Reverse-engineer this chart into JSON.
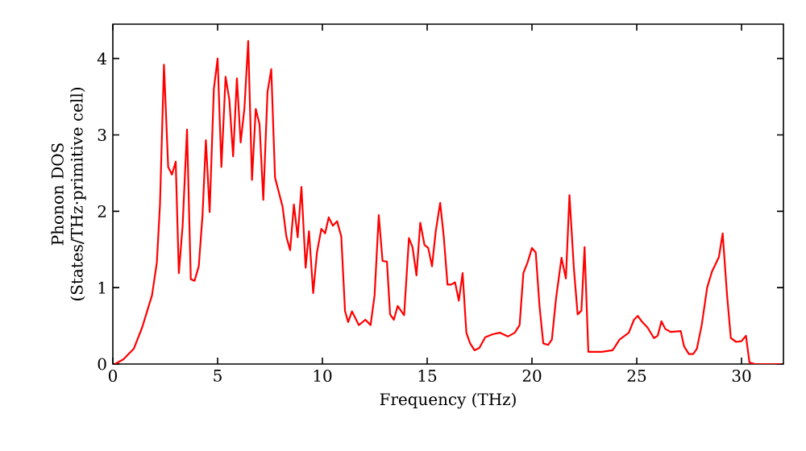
{
  "chart_data": {
    "type": "line",
    "xlabel": "Frequency (THz)",
    "ylabel": "Phonon DOS (States/THz·primitive cell)",
    "xlim": [
      0,
      32
    ],
    "ylim": [
      0,
      4.45
    ],
    "xticks": [
      0,
      5,
      10,
      15,
      20,
      25,
      30
    ],
    "yticks": [
      0,
      1,
      2,
      3,
      4
    ],
    "marker": "none",
    "line_style": "solid",
    "series": [
      {
        "color": "#ff0000",
        "x": [
          0.1,
          0.5,
          1.0,
          1.4,
          1.87,
          2.1,
          2.25,
          2.44,
          2.64,
          2.82,
          3.0,
          3.15,
          3.33,
          3.54,
          3.72,
          3.9,
          4.1,
          4.28,
          4.44,
          4.62,
          4.82,
          5.0,
          5.18,
          5.38,
          5.56,
          5.74,
          5.92,
          6.1,
          6.28,
          6.46,
          6.64,
          6.82,
          7.0,
          7.18,
          7.38,
          7.56,
          7.74,
          8.1,
          8.28,
          8.46,
          8.64,
          8.82,
          9.0,
          9.2,
          9.36,
          9.56,
          9.74,
          9.95,
          10.13,
          10.3,
          10.5,
          10.7,
          10.9,
          11.08,
          11.23,
          11.41,
          11.74,
          12.05,
          12.3,
          12.49,
          12.69,
          12.87,
          13.08,
          13.23,
          13.41,
          13.59,
          13.9,
          14.13,
          14.3,
          14.49,
          14.67,
          14.87,
          15.05,
          15.23,
          15.41,
          15.62,
          15.79,
          15.97,
          16.15,
          16.33,
          16.51,
          16.69,
          16.87,
          17.05,
          17.26,
          17.49,
          17.77,
          18.13,
          18.46,
          18.85,
          19.18,
          19.41,
          19.59,
          19.79,
          20.0,
          20.18,
          20.36,
          20.54,
          20.77,
          20.95,
          21.15,
          21.41,
          21.62,
          21.79,
          22.0,
          22.18,
          22.36,
          22.51,
          22.69,
          23.33,
          23.85,
          24.18,
          24.62,
          24.87,
          25.05,
          25.26,
          25.51,
          25.82,
          26.0,
          26.18,
          26.36,
          26.62,
          27.1,
          27.26,
          27.49,
          27.69,
          27.87,
          28.1,
          28.36,
          28.59,
          28.92,
          29.1,
          29.31,
          29.49,
          29.74,
          30.0,
          30.21,
          30.38,
          30.64,
          31.9
        ],
        "values": [
          0,
          0.06,
          0.2,
          0.48,
          0.9,
          1.33,
          2.09,
          3.92,
          2.58,
          2.48,
          2.65,
          1.19,
          1.81,
          3.07,
          1.11,
          1.09,
          1.28,
          1.95,
          2.93,
          1.99,
          3.6,
          4.0,
          2.58,
          3.76,
          3.46,
          2.72,
          3.74,
          2.9,
          3.35,
          4.23,
          2.41,
          3.34,
          3.14,
          2.15,
          3.56,
          3.86,
          2.44,
          2.06,
          1.67,
          1.49,
          2.09,
          1.66,
          2.32,
          1.26,
          1.74,
          0.93,
          1.46,
          1.77,
          1.71,
          1.92,
          1.81,
          1.87,
          1.67,
          0.69,
          0.55,
          0.69,
          0.51,
          0.58,
          0.51,
          0.9,
          1.95,
          1.35,
          1.34,
          0.65,
          0.58,
          0.76,
          0.64,
          1.65,
          1.53,
          1.16,
          1.85,
          1.56,
          1.52,
          1.28,
          1.74,
          2.11,
          1.67,
          1.04,
          1.04,
          1.07,
          0.83,
          1.19,
          0.41,
          0.27,
          0.18,
          0.21,
          0.35,
          0.39,
          0.41,
          0.36,
          0.41,
          0.51,
          1.19,
          1.33,
          1.52,
          1.46,
          0.76,
          0.27,
          0.25,
          0.32,
          0.86,
          1.39,
          1.12,
          2.21,
          1.25,
          0.65,
          0.7,
          1.53,
          0.16,
          0.16,
          0.18,
          0.32,
          0.41,
          0.58,
          0.63,
          0.55,
          0.48,
          0.34,
          0.37,
          0.56,
          0.46,
          0.42,
          0.43,
          0.23,
          0.13,
          0.13,
          0.2,
          0.51,
          1.0,
          1.21,
          1.4,
          1.71,
          0.9,
          0.34,
          0.29,
          0.3,
          0.37,
          0.02,
          0,
          0
        ]
      }
    ]
  }
}
